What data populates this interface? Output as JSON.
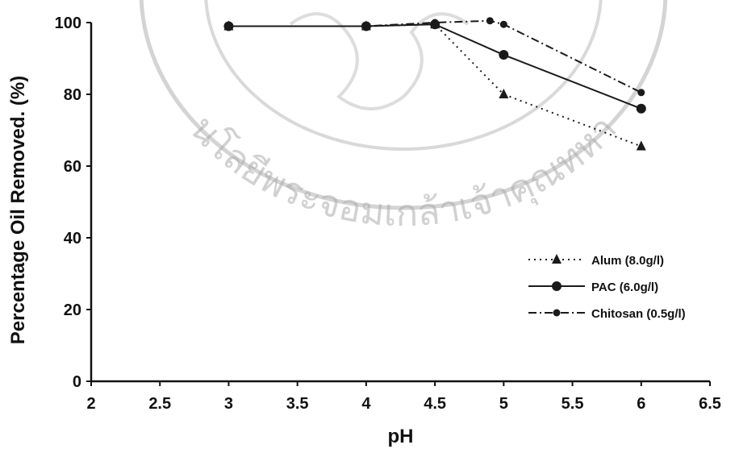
{
  "chart_data": {
    "type": "line",
    "title": "",
    "xlabel": "pH",
    "ylabel": "Percentage Oil Removed. (%)",
    "xlim": [
      2,
      6.5
    ],
    "ylim": [
      0,
      100
    ],
    "xticks": [
      "2",
      "2.5",
      "3",
      "3.5",
      "4",
      "4.5",
      "5",
      "5.5",
      "6",
      "6.5"
    ],
    "yticks": [
      "0",
      "20",
      "40",
      "60",
      "80",
      "100"
    ],
    "grid": false,
    "legend_position": "bottom-right",
    "series": [
      {
        "name": "Alum (8.0g/l)",
        "marker": "triangle",
        "line": "dotted",
        "color": "#1a1a1a",
        "x": [
          3,
          4,
          4.5,
          5,
          6
        ],
        "y": [
          99,
          99,
          99.5,
          80,
          65.5
        ]
      },
      {
        "name": "PAC (6.0g/l)",
        "marker": "circle",
        "line": "solid",
        "color": "#1a1a1a",
        "x": [
          3,
          4,
          4.5,
          5,
          6
        ],
        "y": [
          99,
          99,
          99.5,
          91,
          76
        ]
      },
      {
        "name": "Chitosan (0.5g/l)",
        "marker": "circle-small",
        "line": "dash-dot",
        "color": "#1a1a1a",
        "x": [
          3,
          4,
          4.5,
          4.9,
          5,
          6
        ],
        "y": [
          99,
          99,
          100,
          100.5,
          99.5,
          80.5
        ]
      }
    ]
  },
  "watermark": {
    "text": "นโลยีพระจอมเกล้าเจ้าคุณทหา",
    "color": "#9a9a9a"
  }
}
